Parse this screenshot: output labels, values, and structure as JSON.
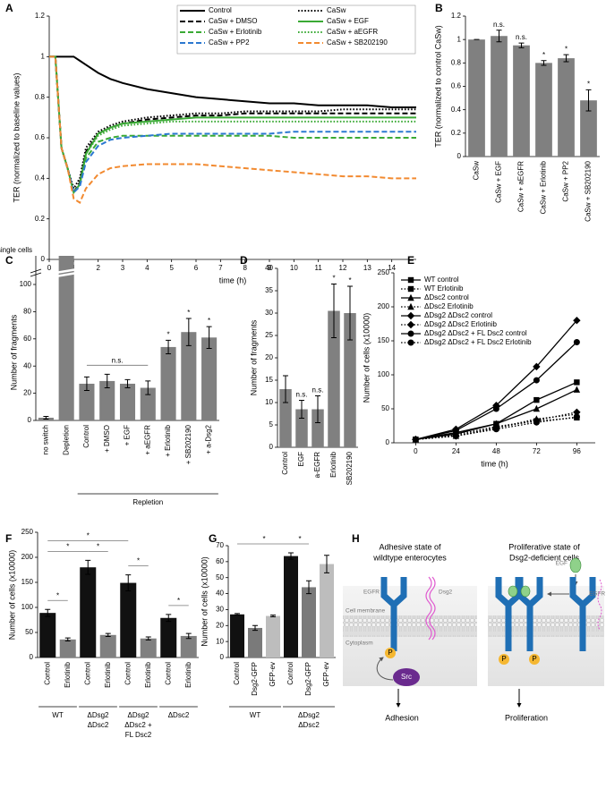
{
  "chart_data": [
    {
      "panel": "A",
      "type": "line",
      "ylabel": "TER (normalized to baseline values)",
      "xlabel": "time (h)",
      "x": [
        0,
        0.25,
        0.5,
        0.75,
        1,
        1.25,
        1.5,
        2,
        2.5,
        3,
        4,
        5,
        6,
        7,
        8,
        9,
        10,
        11,
        12,
        13,
        14,
        15
      ],
      "xlim": [
        0,
        15
      ],
      "xticks": [
        0,
        1,
        2,
        3,
        4,
        5,
        6,
        7,
        8,
        9,
        10,
        11,
        12,
        13,
        14
      ],
      "ylim": [
        0,
        1.2
      ],
      "yticks": [
        0,
        0.2,
        0.4,
        0.6,
        0.8,
        1,
        1.2
      ],
      "legend": "upper right",
      "series": [
        {
          "name": "Control",
          "color": "#000000",
          "style": "solid",
          "values": [
            1,
            1,
            1,
            1,
            1,
            0.98,
            0.96,
            0.92,
            0.89,
            0.87,
            0.84,
            0.82,
            0.8,
            0.79,
            0.78,
            0.77,
            0.77,
            0.76,
            0.76,
            0.76,
            0.75,
            0.75
          ]
        },
        {
          "name": "CaSw",
          "color": "#000000",
          "style": "dotted",
          "values": [
            1,
            1,
            0.55,
            0.45,
            0.35,
            0.4,
            0.55,
            0.63,
            0.66,
            0.68,
            0.7,
            0.71,
            0.72,
            0.72,
            0.73,
            0.73,
            0.73,
            0.73,
            0.74,
            0.74,
            0.74,
            0.74
          ]
        },
        {
          "name": "CaSw + DMSO",
          "color": "#000000",
          "style": "dashed",
          "values": [
            1,
            1,
            0.55,
            0.45,
            0.33,
            0.38,
            0.53,
            0.62,
            0.65,
            0.67,
            0.69,
            0.7,
            0.71,
            0.71,
            0.72,
            0.72,
            0.72,
            0.72,
            0.72,
            0.72,
            0.72,
            0.72
          ]
        },
        {
          "name": "CaSw + EGF",
          "color": "#3aaa35",
          "style": "solid",
          "values": [
            1,
            1,
            0.55,
            0.45,
            0.33,
            0.37,
            0.52,
            0.62,
            0.65,
            0.67,
            0.68,
            0.69,
            0.7,
            0.7,
            0.7,
            0.7,
            0.7,
            0.7,
            0.7,
            0.7,
            0.7,
            0.7
          ]
        },
        {
          "name": "CaSw + Erlotinib",
          "color": "#3aaa35",
          "style": "dashed",
          "values": [
            1,
            1,
            0.55,
            0.45,
            0.33,
            0.37,
            0.5,
            0.58,
            0.6,
            0.61,
            0.61,
            0.61,
            0.61,
            0.61,
            0.61,
            0.61,
            0.6,
            0.6,
            0.6,
            0.6,
            0.6,
            0.6
          ]
        },
        {
          "name": "CaSw + aEGFR",
          "color": "#3aaa35",
          "style": "dotted",
          "values": [
            1,
            1,
            0.55,
            0.45,
            0.33,
            0.37,
            0.52,
            0.61,
            0.64,
            0.66,
            0.67,
            0.68,
            0.68,
            0.68,
            0.68,
            0.68,
            0.68,
            0.68,
            0.68,
            0.68,
            0.68,
            0.68
          ]
        },
        {
          "name": "CaSw + PP2",
          "color": "#2b78d0",
          "style": "dashed",
          "values": [
            1,
            1,
            0.55,
            0.45,
            0.33,
            0.36,
            0.48,
            0.56,
            0.59,
            0.6,
            0.61,
            0.62,
            0.62,
            0.62,
            0.62,
            0.62,
            0.63,
            0.63,
            0.63,
            0.63,
            0.63,
            0.63
          ]
        },
        {
          "name": "CaSw + SB202190",
          "color": "#f28a30",
          "style": "dashed",
          "values": [
            1,
            1,
            0.55,
            0.45,
            0.3,
            0.28,
            0.35,
            0.42,
            0.45,
            0.46,
            0.47,
            0.47,
            0.47,
            0.46,
            0.45,
            0.44,
            0.43,
            0.42,
            0.41,
            0.41,
            0.4,
            0.4
          ]
        }
      ]
    },
    {
      "panel": "B",
      "type": "bar",
      "ylabel": "TER (normalized to control CaSw)",
      "color": "#808080",
      "categories": [
        "CaSw",
        "CaSw + EGF",
        "CaSw + aEGFR",
        "CaSw + Erlotinib",
        "CaSw + PP2",
        "CaSw + SB202190"
      ],
      "values": [
        1,
        1.03,
        0.95,
        0.8,
        0.84,
        0.48
      ],
      "errors": [
        0,
        0.05,
        0.02,
        0.02,
        0.03,
        0.09
      ],
      "annotations": [
        null,
        "n.s.",
        "n.s.",
        "*",
        "*",
        "*"
      ],
      "ylim": [
        0,
        1.2
      ],
      "yticks": [
        0,
        0.2,
        0.4,
        0.6,
        0.8,
        1,
        1.2
      ]
    },
    {
      "panel": "C",
      "type": "bar",
      "ylabel": "Number of fragments",
      "color": "#808080",
      "break_label": "single cells",
      "categories": [
        "no switch",
        "Depletion",
        "Control",
        "+ DMSO",
        "+ EGF",
        "+ aEGFR",
        "+ Erlotinib",
        "+ SB202190",
        "+ a-Dsg2"
      ],
      "values": [
        2,
        null,
        27,
        29,
        27,
        24,
        54,
        65,
        61
      ],
      "errors": [
        1,
        null,
        5,
        5,
        3,
        5,
        5,
        10,
        8
      ],
      "annotations": [
        null,
        null,
        null,
        null,
        null,
        null,
        "*",
        "*",
        "*"
      ],
      "significance": [
        {
          "label": "n.s.",
          "span": [
            2,
            5
          ]
        }
      ],
      "groups": [
        {
          "label": [
            "Repletion"
          ],
          "span": [
            2,
            8
          ]
        }
      ],
      "ylim": [
        0,
        100
      ],
      "yticks": [
        0,
        20,
        40,
        60,
        80,
        100
      ]
    },
    {
      "panel": "D",
      "type": "bar",
      "ylabel": "Number of fragments",
      "color": "#808080",
      "categories": [
        "Control",
        "EGF",
        "a-EGFR",
        "Erlotinib",
        "SB202190"
      ],
      "values": [
        13,
        8.5,
        8.5,
        30.5,
        30
      ],
      "errors": [
        3,
        2,
        3,
        6,
        6
      ],
      "annotations": [
        null,
        "n.s.",
        "n.s.",
        "*",
        "*"
      ],
      "ylim": [
        0,
        40
      ],
      "yticks": [
        0,
        5,
        10,
        15,
        20,
        25,
        30,
        35,
        40
      ]
    },
    {
      "panel": "E",
      "type": "line",
      "ylabel": "Number of cells (x10000)",
      "xlabel": "time (h)",
      "x": [
        0,
        24,
        48,
        72,
        96
      ],
      "xlim": [
        -13,
        107
      ],
      "xticks": [
        0,
        24,
        48,
        72,
        96
      ],
      "ylim": [
        0,
        250
      ],
      "yticks": [
        0,
        50,
        100,
        150,
        200,
        250
      ],
      "legend": "upper left",
      "series": [
        {
          "name": "WT control",
          "color": "#000000",
          "style": "solid",
          "marker": "square",
          "values": [
            5,
            15,
            28,
            63,
            89
          ]
        },
        {
          "name": "WT Erlotinib",
          "color": "#000000",
          "style": "dotted",
          "marker": "square",
          "values": [
            5,
            12,
            24,
            32,
            37
          ]
        },
        {
          "name": "ΔDsc2 control",
          "color": "#000000",
          "style": "solid",
          "marker": "triangle",
          "values": [
            5,
            13,
            28,
            50,
            78
          ]
        },
        {
          "name": "ΔDsc2 Erlotinib",
          "color": "#000000",
          "style": "dotted",
          "marker": "triangle",
          "values": [
            5,
            10,
            22,
            35,
            42
          ]
        },
        {
          "name": "ΔDsg2 ΔDsc2 control",
          "color": "#000000",
          "style": "solid",
          "marker": "diamond",
          "values": [
            5,
            20,
            55,
            112,
            180
          ]
        },
        {
          "name": "ΔDsg2 ΔDsc2 Erlotinib",
          "color": "#000000",
          "style": "dotted",
          "marker": "diamond",
          "values": [
            5,
            10,
            22,
            33,
            45
          ]
        },
        {
          "name": "ΔDsg2 ΔDsc2 + FL Dsc2 control",
          "color": "#000000",
          "style": "solid",
          "marker": "circle",
          "values": [
            5,
            18,
            50,
            92,
            148
          ]
        },
        {
          "name": "ΔDsg2 ΔDsc2 + FL Dsc2 Erlotinib",
          "color": "#000000",
          "style": "dotted",
          "marker": "circle",
          "values": [
            5,
            10,
            20,
            30,
            38
          ]
        }
      ]
    },
    {
      "panel": "F",
      "type": "bar",
      "ylabel": "Number of cells (x10000)",
      "colors": [
        "#111111",
        "#808080",
        "#111111",
        "#808080",
        "#111111",
        "#808080",
        "#111111",
        "#808080"
      ],
      "categories": [
        "Control",
        "Erlotinib",
        "Control",
        "Erlotinib",
        "Control",
        "Erlotinib",
        "Control",
        "Erlotinib"
      ],
      "values": [
        89,
        36,
        180,
        45,
        149,
        38,
        79,
        43
      ],
      "errors": [
        7,
        3,
        14,
        3,
        16,
        3,
        7,
        5
      ],
      "significance": [
        {
          "label": "*",
          "span": [
            0,
            1
          ]
        },
        {
          "label": "*",
          "span": [
            2,
            3
          ]
        },
        {
          "label": "*",
          "span": [
            4,
            5
          ]
        },
        {
          "label": "*",
          "span": [
            6,
            7
          ]
        },
        {
          "label": "*",
          "span": [
            0,
            2
          ]
        },
        {
          "label": "*",
          "span": [
            0,
            4
          ]
        }
      ],
      "groups": [
        {
          "label": [
            "WT"
          ],
          "span": [
            0,
            1
          ]
        },
        {
          "label": [
            "ΔDsg2",
            "ΔDsc2"
          ],
          "span": [
            2,
            3
          ]
        },
        {
          "label": [
            "ΔDsg2",
            "ΔDsc2 +",
            "FL Dsc2"
          ],
          "span": [
            4,
            5
          ]
        },
        {
          "label": [
            "ΔDsc2"
          ],
          "span": [
            6,
            7
          ]
        }
      ],
      "ylim": [
        0,
        250
      ],
      "yticks": [
        0,
        50,
        100,
        150,
        200,
        250
      ]
    },
    {
      "panel": "G",
      "type": "bar",
      "ylabel": "Number of cells (x10000)",
      "colors": [
        "#111111",
        "#7a7a7a",
        "#bdbdbd",
        "#111111",
        "#7a7a7a",
        "#bdbdbd"
      ],
      "categories": [
        "Control",
        "Dsg2-GFP",
        "GFP-ev",
        "Control",
        "Dsg2-GFP",
        "GFP-ev"
      ],
      "values": [
        27,
        18.5,
        26,
        63.5,
        44,
        58.5
      ],
      "errors": [
        0.5,
        1.5,
        0.5,
        2,
        4,
        5.5
      ],
      "significance": [
        {
          "label": "*",
          "span": [
            3,
            4
          ]
        },
        {
          "label": "*",
          "span": [
            0,
            3
          ]
        }
      ],
      "groups": [
        {
          "label": [
            "WT"
          ],
          "span": [
            0,
            2
          ]
        },
        {
          "label": [
            "ΔDsg2",
            "ΔDsc2"
          ],
          "span": [
            3,
            5
          ]
        }
      ],
      "ylim": [
        0,
        70
      ],
      "yticks": [
        0,
        10,
        20,
        30,
        40,
        50,
        60,
        70
      ]
    }
  ],
  "diagram": {
    "panel": "H",
    "left": {
      "heading": [
        "Adhesive state of",
        "wildtype enterocytes"
      ],
      "receptor": "EGFR",
      "adhesion_molecule": "Dsg2",
      "membrane": "Cell membrane",
      "cytoplasm": "Cytoplasm",
      "phospho": "P",
      "kinase": "Src",
      "outcome": "Adhesion"
    },
    "right": {
      "heading": [
        "Proliferative state of",
        "Dsg2-deficient cells"
      ],
      "ligand": "EGF",
      "receptor": "EGFR",
      "phospho": [
        "P",
        "P"
      ],
      "outcome": "Proliferation"
    }
  }
}
